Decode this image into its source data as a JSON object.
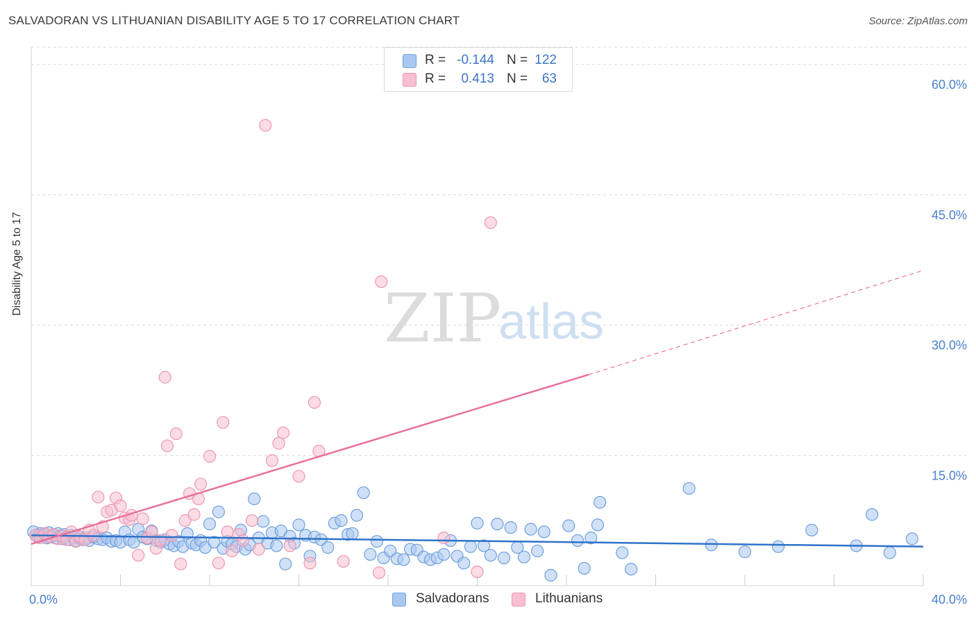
{
  "title": "SALVADORAN VS LITHUANIAN DISABILITY AGE 5 TO 17 CORRELATION CHART",
  "source": "Source: ZipAtlas.com",
  "watermark": {
    "zip": "ZIP",
    "atlas": "atlas"
  },
  "legend_top": [
    {
      "r_label": "R =",
      "r_value": "-0.144",
      "n_label": "N =",
      "n_value": "122"
    },
    {
      "r_label": "R =",
      "r_value": "0.413",
      "n_label": "N =",
      "n_value": "63"
    }
  ],
  "legend_bottom": [
    "Salvadorans",
    "Lithuanians"
  ],
  "colors": {
    "salvadoran_fill": "#a9c8f0",
    "salvadoran_stroke": "#6f9fdc",
    "salvadoran_line": "#2f72c9",
    "lithuanian_fill": "#f7bfd0",
    "lithuanian_stroke": "#ec98b2",
    "lithuanian_line": "#e8709a",
    "tick_text": "#4a7fcf",
    "grid": "#d9d9d9"
  },
  "chart_data": {
    "type": "scatter",
    "title": "SALVADORAN VS LITHUANIAN DISABILITY AGE 5 TO 17 CORRELATION CHART",
    "xlabel": "",
    "ylabel": "Disability Age 5 to 17",
    "xlim": [
      0,
      40
    ],
    "ylim": [
      0,
      62
    ],
    "x_ticks": [
      "0.0%",
      "40.0%"
    ],
    "y_ticks": [
      {
        "value": 15,
        "label": "15.0%"
      },
      {
        "value": 30,
        "label": "30.0%"
      },
      {
        "value": 45,
        "label": "45.0%"
      },
      {
        "value": 60,
        "label": "60.0%"
      }
    ],
    "grid": true,
    "legend_placement": "top-center",
    "series": [
      {
        "name": "Salvadorans",
        "r": -0.144,
        "n": 122,
        "trend": {
          "x0": 0,
          "y0": 5.8,
          "x1": 40,
          "y1": 4.5,
          "dashed_from": null
        },
        "points": [
          [
            0.1,
            6.2
          ],
          [
            0.2,
            5.8
          ],
          [
            0.3,
            5.6
          ],
          [
            0.4,
            6.0
          ],
          [
            0.5,
            5.7
          ],
          [
            0.6,
            5.9
          ],
          [
            0.7,
            5.5
          ],
          [
            0.8,
            6.1
          ],
          [
            0.9,
            5.6
          ],
          [
            1.0,
            5.8
          ],
          [
            1.1,
            5.5
          ],
          [
            1.2,
            6.0
          ],
          [
            1.3,
            5.7
          ],
          [
            1.4,
            5.4
          ],
          [
            1.5,
            5.9
          ],
          [
            1.6,
            5.6
          ],
          [
            1.7,
            5.3
          ],
          [
            1.8,
            5.8
          ],
          [
            1.9,
            5.5
          ],
          [
            2.0,
            5.2
          ],
          [
            2.1,
            5.7
          ],
          [
            2.2,
            5.4
          ],
          [
            2.3,
            5.3
          ],
          [
            2.5,
            5.5
          ],
          [
            2.6,
            5.2
          ],
          [
            2.8,
            5.6
          ],
          [
            3.0,
            5.4
          ],
          [
            3.2,
            5.3
          ],
          [
            3.4,
            5.5
          ],
          [
            3.6,
            5.1
          ],
          [
            3.8,
            5.2
          ],
          [
            4.0,
            5.0
          ],
          [
            4.2,
            6.2
          ],
          [
            4.4,
            5.3
          ],
          [
            4.6,
            5.0
          ],
          [
            4.8,
            6.5
          ],
          [
            5.0,
            5.6
          ],
          [
            5.2,
            5.4
          ],
          [
            5.4,
            6.3
          ],
          [
            5.6,
            5.2
          ],
          [
            5.8,
            5.0
          ],
          [
            6.0,
            5.3
          ],
          [
            6.2,
            4.8
          ],
          [
            6.4,
            4.6
          ],
          [
            6.6,
            5.1
          ],
          [
            6.8,
            4.5
          ],
          [
            7.0,
            6.0
          ],
          [
            7.2,
            4.9
          ],
          [
            7.4,
            4.7
          ],
          [
            7.6,
            5.2
          ],
          [
            7.8,
            4.4
          ],
          [
            8.0,
            7.1
          ],
          [
            8.2,
            5.0
          ],
          [
            8.4,
            8.5
          ],
          [
            8.6,
            4.3
          ],
          [
            8.8,
            5.1
          ],
          [
            9.0,
            4.8
          ],
          [
            9.2,
            4.5
          ],
          [
            9.4,
            6.4
          ],
          [
            9.6,
            4.2
          ],
          [
            9.8,
            4.7
          ],
          [
            10.0,
            10.0
          ],
          [
            10.2,
            5.5
          ],
          [
            10.4,
            7.4
          ],
          [
            10.6,
            4.9
          ],
          [
            10.8,
            6.1
          ],
          [
            11.0,
            4.6
          ],
          [
            11.2,
            6.3
          ],
          [
            11.4,
            2.5
          ],
          [
            11.6,
            5.7
          ],
          [
            11.8,
            4.9
          ],
          [
            12.0,
            7.0
          ],
          [
            12.3,
            5.8
          ],
          [
            12.5,
            3.4
          ],
          [
            12.7,
            5.6
          ],
          [
            13.0,
            5.3
          ],
          [
            13.3,
            4.4
          ],
          [
            13.6,
            7.2
          ],
          [
            13.9,
            7.5
          ],
          [
            14.2,
            5.9
          ],
          [
            14.4,
            6.0
          ],
          [
            14.6,
            8.1
          ],
          [
            14.9,
            10.7
          ],
          [
            15.2,
            3.6
          ],
          [
            15.5,
            5.1
          ],
          [
            15.8,
            3.2
          ],
          [
            16.1,
            4.0
          ],
          [
            16.4,
            3.1
          ],
          [
            16.7,
            3.0
          ],
          [
            17.0,
            4.2
          ],
          [
            17.3,
            4.1
          ],
          [
            17.6,
            3.3
          ],
          [
            17.9,
            3.0
          ],
          [
            18.2,
            3.2
          ],
          [
            18.5,
            3.6
          ],
          [
            18.8,
            5.2
          ],
          [
            19.1,
            3.4
          ],
          [
            19.4,
            2.6
          ],
          [
            19.7,
            4.5
          ],
          [
            20.0,
            7.2
          ],
          [
            20.3,
            4.6
          ],
          [
            20.6,
            3.5
          ],
          [
            20.9,
            7.1
          ],
          [
            21.2,
            3.2
          ],
          [
            21.5,
            6.7
          ],
          [
            21.8,
            4.4
          ],
          [
            22.1,
            3.3
          ],
          [
            22.4,
            6.5
          ],
          [
            22.7,
            4.0
          ],
          [
            23.0,
            6.2
          ],
          [
            23.3,
            1.2
          ],
          [
            24.1,
            6.9
          ],
          [
            24.5,
            5.2
          ],
          [
            24.8,
            2.0
          ],
          [
            25.1,
            5.5
          ],
          [
            25.4,
            7.0
          ],
          [
            25.5,
            9.6
          ],
          [
            26.5,
            3.8
          ],
          [
            26.9,
            1.9
          ],
          [
            29.5,
            11.2
          ],
          [
            30.5,
            4.7
          ],
          [
            32.0,
            3.9
          ],
          [
            33.5,
            4.5
          ],
          [
            35.0,
            6.4
          ],
          [
            37.0,
            4.6
          ],
          [
            37.7,
            8.2
          ],
          [
            38.5,
            3.8
          ],
          [
            39.5,
            5.4
          ]
        ]
      },
      {
        "name": "Lithuanians",
        "r": 0.413,
        "n": 63,
        "trend": {
          "x0": 0,
          "y0": 4.8,
          "x1": 25,
          "y1": 24.3,
          "dashed_to_x": 40,
          "dashed_to_y": 36.3
        },
        "points": [
          [
            0.2,
            5.8
          ],
          [
            0.4,
            5.5
          ],
          [
            0.6,
            6.0
          ],
          [
            0.8,
            5.6
          ],
          [
            1.0,
            5.9
          ],
          [
            1.2,
            5.4
          ],
          [
            1.4,
            5.7
          ],
          [
            1.6,
            5.3
          ],
          [
            1.8,
            6.2
          ],
          [
            2.0,
            5.1
          ],
          [
            2.2,
            5.6
          ],
          [
            2.4,
            5.3
          ],
          [
            2.6,
            6.4
          ],
          [
            2.8,
            5.8
          ],
          [
            3.0,
            10.2
          ],
          [
            3.2,
            6.8
          ],
          [
            3.4,
            8.5
          ],
          [
            3.6,
            8.7
          ],
          [
            3.8,
            10.1
          ],
          [
            4.0,
            9.2
          ],
          [
            4.2,
            7.8
          ],
          [
            4.4,
            7.6
          ],
          [
            4.5,
            8.1
          ],
          [
            4.8,
            3.5
          ],
          [
            5.0,
            7.7
          ],
          [
            5.2,
            5.5
          ],
          [
            5.4,
            6.2
          ],
          [
            5.6,
            4.3
          ],
          [
            5.8,
            5.2
          ],
          [
            6.0,
            24.0
          ],
          [
            6.1,
            16.1
          ],
          [
            6.3,
            5.8
          ],
          [
            6.5,
            17.5
          ],
          [
            6.7,
            2.5
          ],
          [
            6.9,
            7.5
          ],
          [
            7.1,
            10.6
          ],
          [
            7.3,
            8.2
          ],
          [
            7.5,
            10.0
          ],
          [
            7.6,
            11.7
          ],
          [
            8.0,
            14.9
          ],
          [
            8.4,
            2.6
          ],
          [
            8.6,
            18.8
          ],
          [
            8.8,
            6.2
          ],
          [
            9.0,
            4.0
          ],
          [
            9.3,
            5.9
          ],
          [
            9.5,
            5.2
          ],
          [
            9.9,
            7.5
          ],
          [
            10.2,
            4.2
          ],
          [
            10.5,
            53.0
          ],
          [
            10.8,
            14.4
          ],
          [
            11.1,
            16.4
          ],
          [
            11.3,
            17.6
          ],
          [
            11.6,
            4.6
          ],
          [
            12.0,
            12.6
          ],
          [
            12.5,
            2.6
          ],
          [
            12.7,
            21.1
          ],
          [
            12.9,
            15.5
          ],
          [
            14.0,
            2.8
          ],
          [
            15.6,
            1.5
          ],
          [
            15.7,
            35.0
          ],
          [
            18.5,
            5.5
          ],
          [
            20.0,
            1.6
          ],
          [
            20.6,
            41.8
          ]
        ]
      }
    ]
  }
}
